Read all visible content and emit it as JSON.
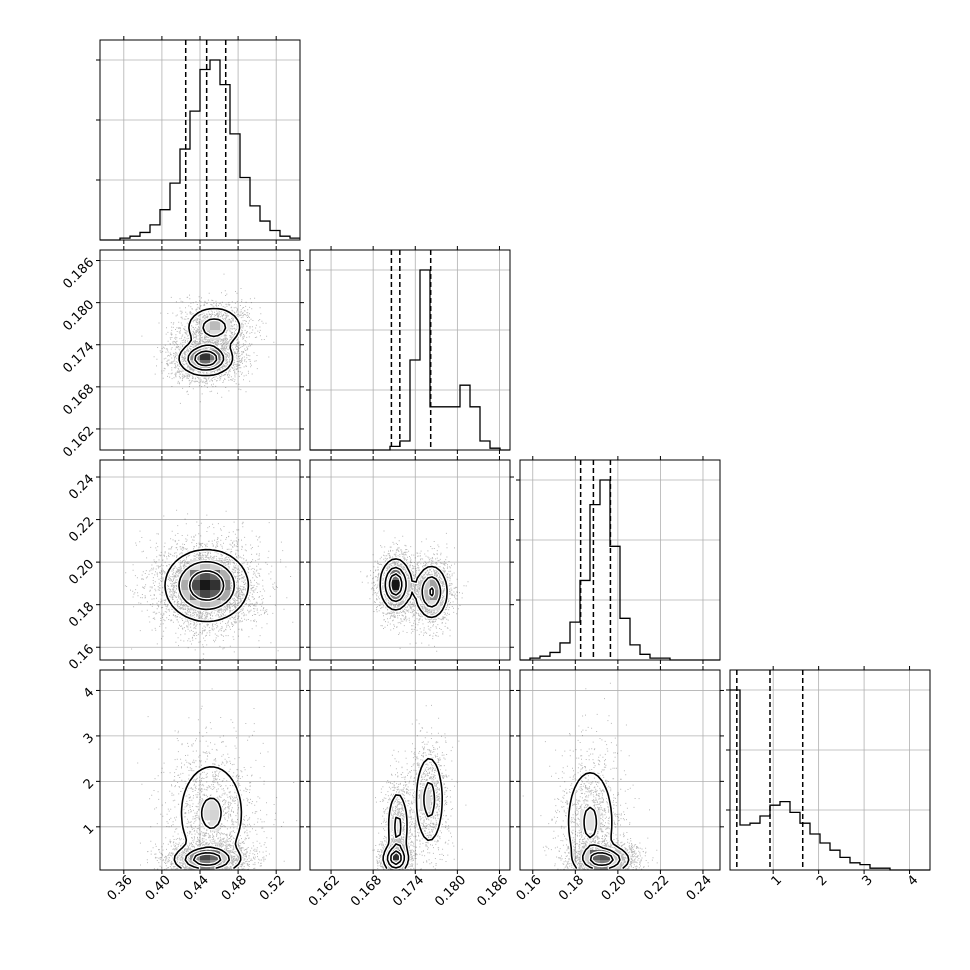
{
  "chart_data": {
    "type": "corner",
    "parameters": [
      {
        "index": 0,
        "range": [
          0.335,
          0.545
        ],
        "ticks": [
          0.36,
          0.4,
          0.44,
          0.48,
          0.52
        ],
        "tick_labels": [
          "0.36",
          "0.40",
          "0.44",
          "0.48",
          "0.52"
        ],
        "quantiles": [
          0.425,
          0.447,
          0.467
        ],
        "hist": {
          "edges_start": 0.335,
          "edges_end": 0.545,
          "counts": [
            0,
            0,
            1,
            2,
            4,
            8,
            16,
            30,
            48,
            68,
            90,
            95,
            82,
            56,
            33,
            18,
            10,
            5,
            2,
            1
          ]
        }
      },
      {
        "index": 1,
        "range": [
          0.159,
          0.1875
        ],
        "ticks": [
          0.162,
          0.168,
          0.174,
          0.18,
          0.186
        ],
        "tick_labels": [
          "0.162",
          "0.168",
          "0.174",
          "0.180",
          "0.186"
        ],
        "quantiles": [
          0.1706,
          0.1718,
          0.1762
        ],
        "hist": {
          "edges_start": 0.159,
          "edges_end": 0.1875,
          "counts": [
            0,
            0,
            0,
            0,
            0,
            0,
            0,
            0,
            2,
            5,
            50,
            100,
            24,
            24,
            24,
            36,
            24,
            5,
            1,
            0
          ]
        }
      },
      {
        "index": 2,
        "range": [
          0.154,
          0.248
        ],
        "ticks": [
          0.16,
          0.18,
          0.2,
          0.22,
          0.24
        ],
        "tick_labels": [
          "0.16",
          "0.18",
          "0.20",
          "0.22",
          "0.24"
        ],
        "quantiles": [
          0.1825,
          0.1885,
          0.1965
        ],
        "hist": {
          "edges_start": 0.154,
          "edges_end": 0.248,
          "counts": [
            0,
            1,
            2,
            4,
            9,
            20,
            42,
            82,
            95,
            60,
            22,
            8,
            3,
            1,
            1,
            0,
            0,
            0,
            0,
            0
          ]
        }
      },
      {
        "index": 3,
        "range": [
          0.05,
          4.45
        ],
        "ticks": [
          1,
          2,
          3,
          4
        ],
        "tick_labels": [
          "1",
          "2",
          "3",
          "4"
        ],
        "quantiles": [
          0.2,
          0.93,
          1.65
        ],
        "hist": {
          "edges_start": 0.05,
          "edges_end": 4.45,
          "counts": [
            100,
            25,
            26,
            30,
            36,
            38,
            32,
            26,
            20,
            15,
            11,
            7,
            4,
            3,
            1,
            1,
            0,
            0,
            0,
            0
          ]
        }
      }
    ],
    "pairs": [
      {
        "x": 0,
        "y": 1,
        "modes": [
          {
            "cx": 0.446,
            "cy": 0.172,
            "sx": 0.014,
            "sy": 0.0012,
            "w": 1.0
          },
          {
            "cx": 0.455,
            "cy": 0.1765,
            "sx": 0.016,
            "sy": 0.0016,
            "w": 0.55
          }
        ]
      },
      {
        "x": 0,
        "y": 2,
        "modes": [
          {
            "cx": 0.447,
            "cy": 0.189,
            "sx": 0.022,
            "sy": 0.0085,
            "w": 1.0
          }
        ]
      },
      {
        "x": 1,
        "y": 2,
        "modes": [
          {
            "cx": 0.1712,
            "cy": 0.1895,
            "sx": 0.0011,
            "sy": 0.006,
            "w": 1.0
          },
          {
            "cx": 0.1763,
            "cy": 0.186,
            "sx": 0.0012,
            "sy": 0.0065,
            "w": 0.75
          }
        ]
      },
      {
        "x": 0,
        "y": 3,
        "modes": [
          {
            "cx": 0.447,
            "cy": 0.28,
            "sx": 0.017,
            "sy": 0.15,
            "w": 1.0
          },
          {
            "cx": 0.452,
            "cy": 1.3,
            "sx": 0.02,
            "sy": 0.65,
            "w": 0.55
          }
        ]
      },
      {
        "x": 1,
        "y": 3,
        "modes": [
          {
            "cx": 0.1712,
            "cy": 0.3,
            "sx": 0.0009,
            "sy": 0.15,
            "w": 1.0
          },
          {
            "cx": 0.1715,
            "cy": 1.0,
            "sx": 0.0008,
            "sy": 0.45,
            "w": 0.55
          },
          {
            "cx": 0.176,
            "cy": 1.6,
            "sx": 0.0011,
            "sy": 0.55,
            "w": 0.6
          }
        ]
      },
      {
        "x": 2,
        "y": 3,
        "modes": [
          {
            "cx": 0.1935,
            "cy": 0.28,
            "sx": 0.006,
            "sy": 0.15,
            "w": 1.0
          },
          {
            "cx": 0.187,
            "cy": 1.1,
            "sx": 0.0065,
            "sy": 0.7,
            "w": 0.55
          }
        ]
      }
    ]
  }
}
